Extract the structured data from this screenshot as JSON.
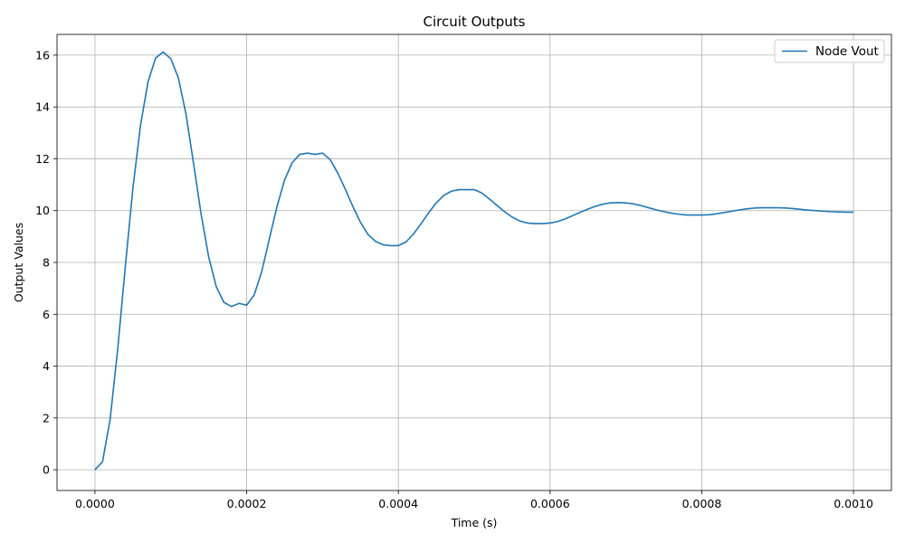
{
  "chart_data": {
    "type": "line",
    "title": "Circuit Outputs",
    "xlabel": "Time (s)",
    "ylabel": "Output Values",
    "xlim": [
      -5e-05,
      0.00105
    ],
    "ylim": [
      -0.8,
      16.8
    ],
    "x_ticks": [
      0,
      0.0002,
      0.0004,
      0.0006,
      0.0008,
      0.001
    ],
    "x_tick_labels": [
      "0.0000",
      "0.0002",
      "0.0004",
      "0.0006",
      "0.0008",
      "0.0010"
    ],
    "y_ticks": [
      0,
      2,
      4,
      6,
      8,
      10,
      12,
      14,
      16
    ],
    "y_tick_labels": [
      "0",
      "2",
      "4",
      "6",
      "8",
      "10",
      "12",
      "14",
      "16"
    ],
    "grid": true,
    "legend_position": "top-right",
    "series": [
      {
        "name": "Node Vout",
        "color": "#1f77b4",
        "x": [
          0,
          1e-05,
          2e-05,
          3e-05,
          4e-05,
          5e-05,
          6e-05,
          7e-05,
          8e-05,
          9e-05,
          0.0001,
          0.00011,
          0.00012,
          0.00013,
          0.00014,
          0.00015,
          0.00016,
          0.00017,
          0.00018,
          0.00019,
          0.0002,
          0.00021,
          0.00022,
          0.00023,
          0.00024,
          0.00025,
          0.00026,
          0.00027,
          0.00028,
          0.00029,
          0.0003,
          0.00031,
          0.00032,
          0.00033,
          0.00034,
          0.00035,
          0.00036,
          0.00037,
          0.00038,
          0.00039,
          0.0004,
          0.00041,
          0.00042,
          0.00043,
          0.00044,
          0.00045,
          0.00046,
          0.00047,
          0.00048,
          0.00049,
          0.0005,
          0.00051,
          0.00052,
          0.00053,
          0.00054,
          0.00055,
          0.00056,
          0.00057,
          0.00058,
          0.00059,
          0.0006,
          0.00061,
          0.00062,
          0.00063,
          0.00064,
          0.00065,
          0.00066,
          0.00067,
          0.00068,
          0.00069,
          0.0007,
          0.00071,
          0.00072,
          0.00073,
          0.00074,
          0.00075,
          0.00076,
          0.00077,
          0.00078,
          0.00079,
          0.0008,
          0.00081,
          0.00082,
          0.00083,
          0.00084,
          0.00085,
          0.00086,
          0.00087,
          0.00088,
          0.00089,
          0.0009,
          0.00091,
          0.00092,
          0.00093,
          0.00094,
          0.00095,
          0.00096,
          0.00097,
          0.00098,
          0.00099,
          0.001
        ],
        "values": [
          0,
          0.31,
          1.94,
          4.65,
          7.83,
          10.85,
          13.28,
          14.97,
          15.89,
          16.12,
          15.86,
          15.12,
          13.73,
          11.82,
          9.86,
          8.2,
          7.06,
          6.46,
          6.3,
          6.42,
          6.35,
          6.75,
          7.66,
          8.92,
          10.16,
          11.18,
          11.85,
          12.17,
          12.22,
          12.17,
          12.22,
          11.97,
          11.46,
          10.83,
          10.16,
          9.55,
          9.08,
          8.81,
          8.68,
          8.65,
          8.65,
          8.79,
          9.1,
          9.5,
          9.92,
          10.3,
          10.59,
          10.75,
          10.81,
          10.81,
          10.81,
          10.68,
          10.45,
          10.2,
          9.96,
          9.75,
          9.6,
          9.52,
          9.5,
          9.5,
          9.52,
          9.58,
          9.68,
          9.81,
          9.94,
          10.06,
          10.17,
          10.25,
          10.3,
          10.31,
          10.3,
          10.26,
          10.19,
          10.11,
          10.03,
          9.96,
          9.9,
          9.86,
          9.83,
          9.83,
          9.83,
          9.84,
          9.88,
          9.93,
          9.98,
          10.03,
          10.07,
          10.1,
          10.11,
          10.11,
          10.11,
          10.1,
          10.08,
          10.05,
          10.02,
          10.0,
          9.98,
          9.96,
          9.95,
          9.94,
          9.94
        ]
      }
    ]
  }
}
